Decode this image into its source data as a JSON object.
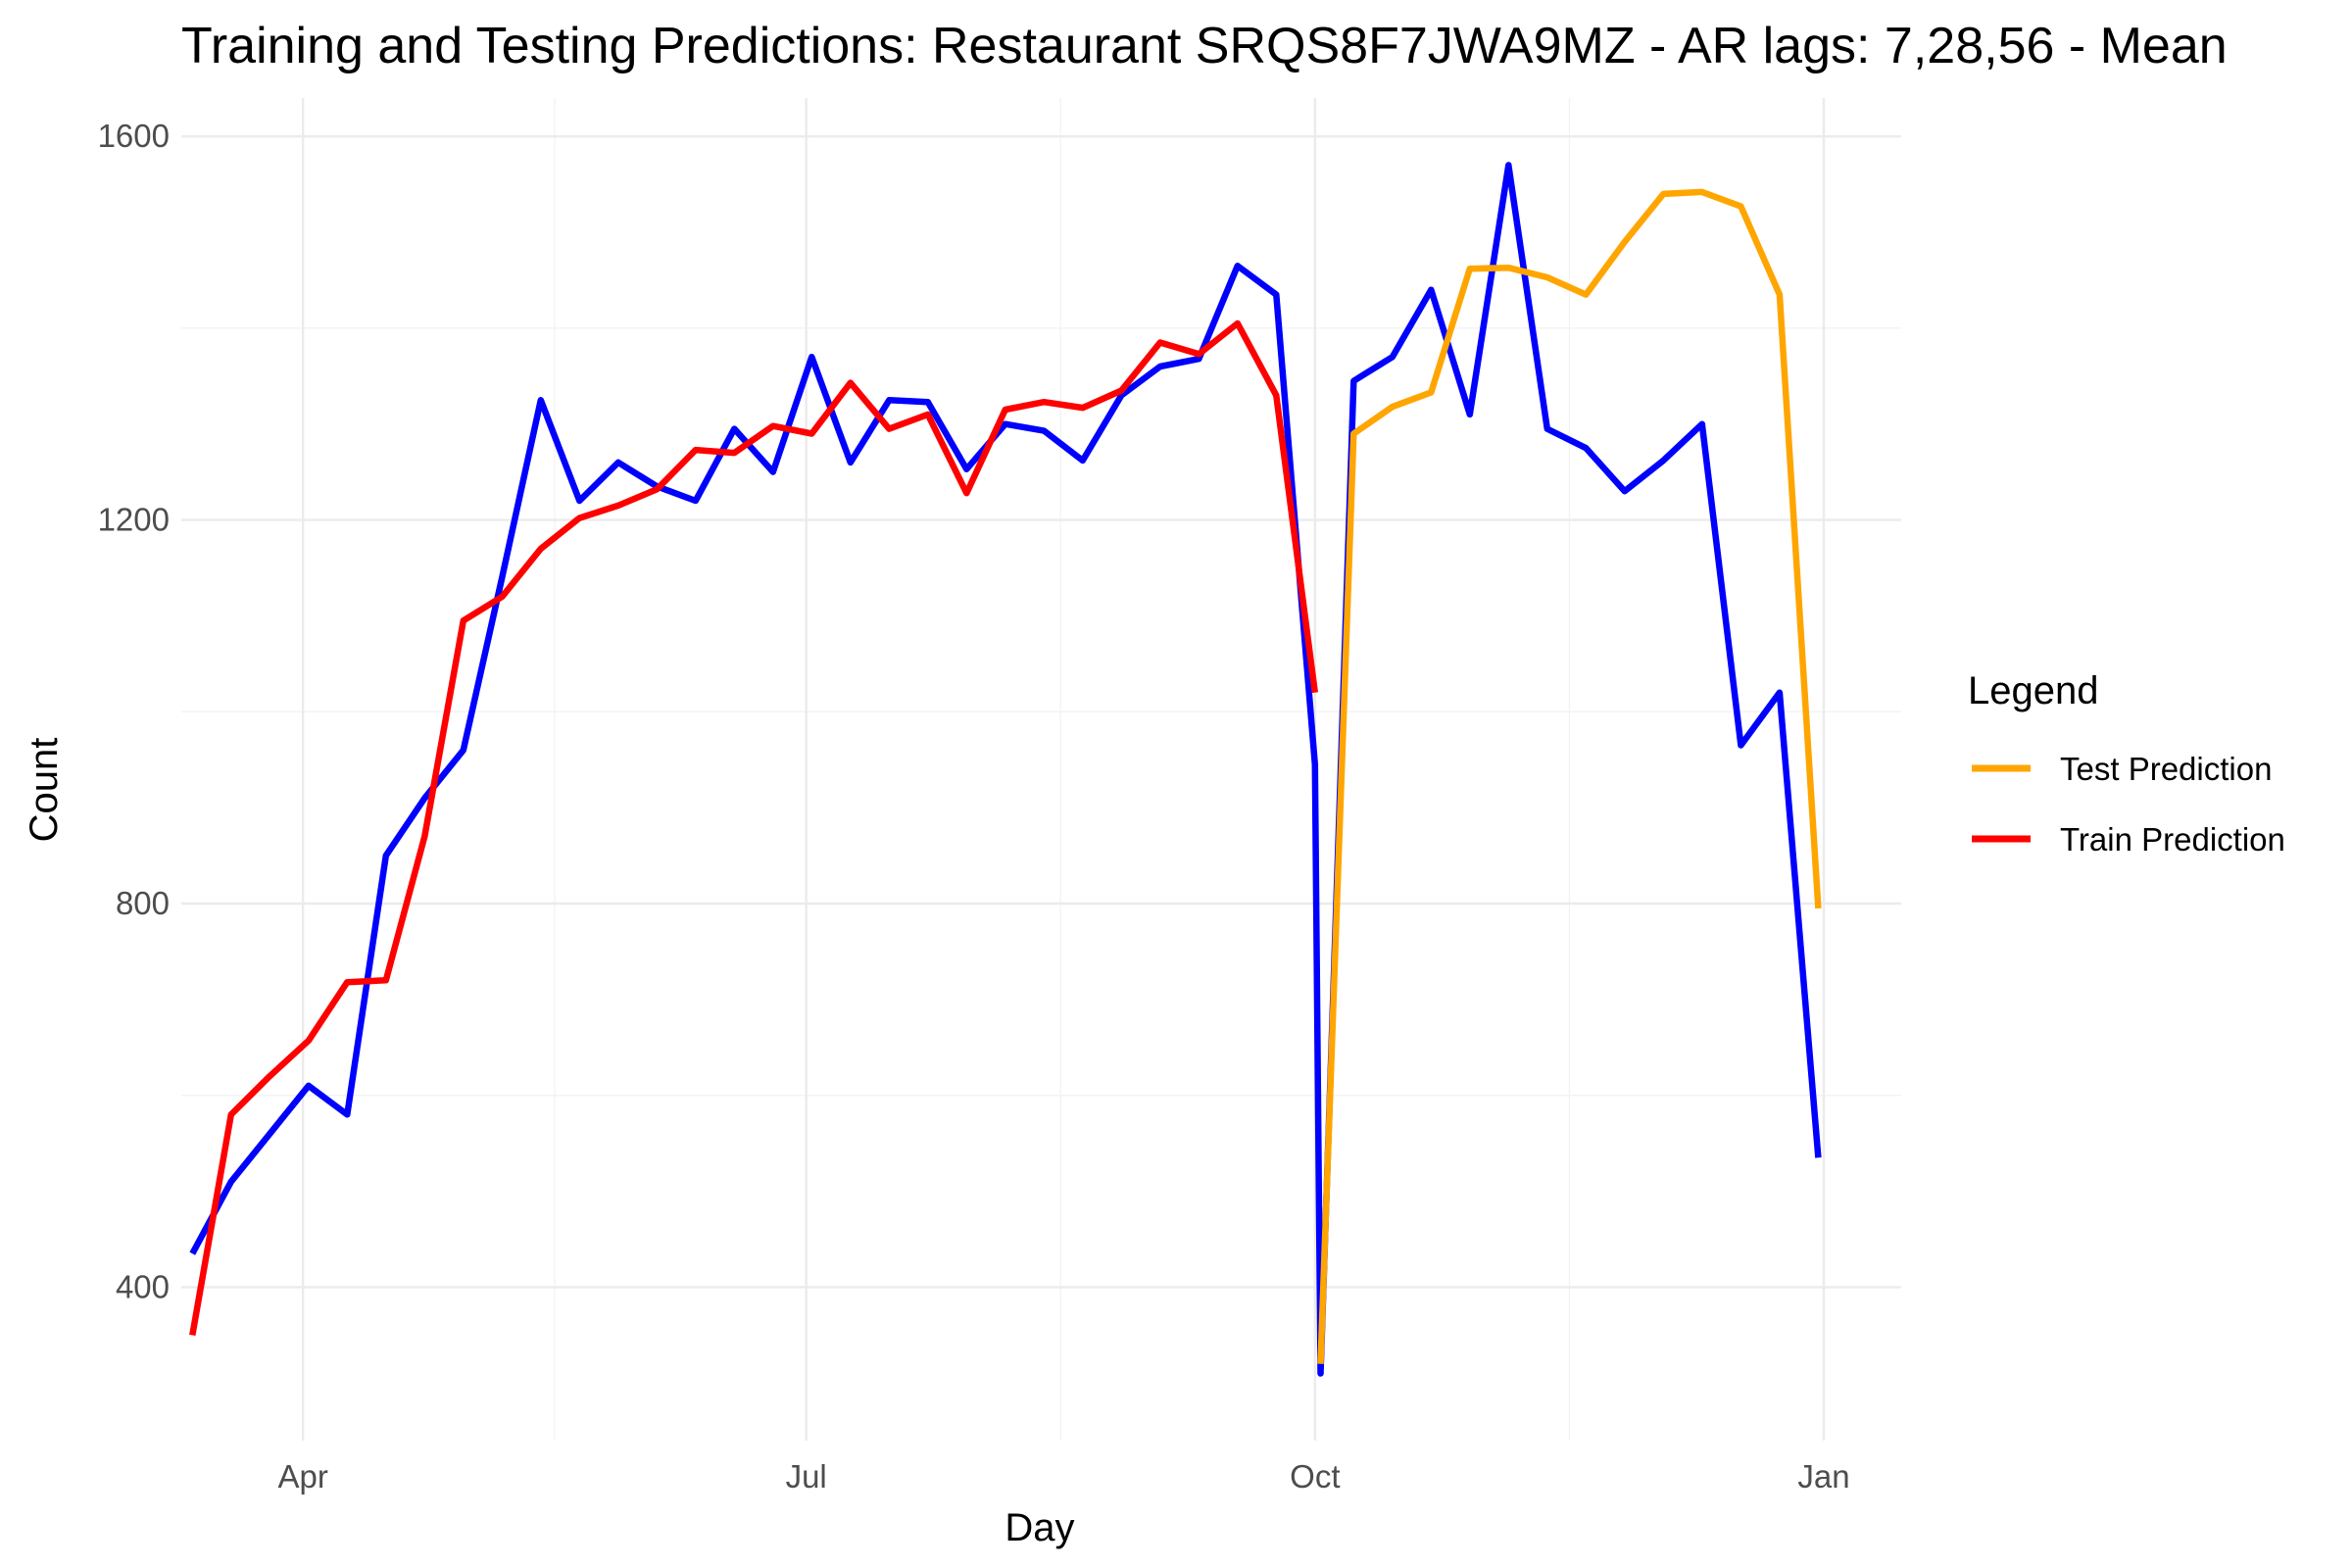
{
  "chart_data": {
    "type": "line",
    "title": "Training and Testing Predictions: Restaurant SRQS8F7JWA9MZ - AR lags: 7,28,56 - Mean",
    "xlabel": "Day",
    "ylabel": "Count",
    "x_range": [
      "2023-03-10",
      "2024-01-15"
    ],
    "ylim": [
      240,
      1640
    ],
    "x_ticks": [
      {
        "date": "2023-04-01",
        "label": "Apr"
      },
      {
        "date": "2023-07-01",
        "label": "Jul"
      },
      {
        "date": "2023-10-01",
        "label": "Oct"
      },
      {
        "date": "2024-01-01",
        "label": "Jan"
      }
    ],
    "y_ticks": [
      400,
      800,
      1200,
      1600
    ],
    "grid": true,
    "legend": {
      "title": "Legend",
      "position": "right",
      "entries": [
        {
          "label": "Test Prediction",
          "color": "#FFA500"
        },
        {
          "label": "Train Prediction",
          "color": "#FF0000"
        }
      ]
    },
    "series": [
      {
        "color": "#0000FF",
        "points": [
          [
            "2023-03-12",
            435
          ],
          [
            "2023-03-19",
            510
          ],
          [
            "2023-03-26",
            560
          ],
          [
            "2023-04-02",
            610
          ],
          [
            "2023-04-09",
            580
          ],
          [
            "2023-04-16",
            850
          ],
          [
            "2023-04-23",
            910
          ],
          [
            "2023-04-30",
            960
          ],
          [
            "2023-05-07",
            1140
          ],
          [
            "2023-05-14",
            1325
          ],
          [
            "2023-05-21",
            1220
          ],
          [
            "2023-05-28",
            1260
          ],
          [
            "2023-06-04",
            1235
          ],
          [
            "2023-06-11",
            1220
          ],
          [
            "2023-06-18",
            1295
          ],
          [
            "2023-06-25",
            1250
          ],
          [
            "2023-07-02",
            1370
          ],
          [
            "2023-07-09",
            1260
          ],
          [
            "2023-07-16",
            1325
          ],
          [
            "2023-07-23",
            1323
          ],
          [
            "2023-07-30",
            1253
          ],
          [
            "2023-08-06",
            1300
          ],
          [
            "2023-08-13",
            1293
          ],
          [
            "2023-08-20",
            1262
          ],
          [
            "2023-08-27",
            1330
          ],
          [
            "2023-09-03",
            1360
          ],
          [
            "2023-09-10",
            1368
          ],
          [
            "2023-09-17",
            1465
          ],
          [
            "2023-09-24",
            1435
          ],
          [
            "2023-10-01",
            945
          ],
          [
            "2023-10-02",
            310
          ],
          [
            "2023-10-08",
            1345
          ],
          [
            "2023-10-15",
            1370
          ],
          [
            "2023-10-22",
            1440
          ],
          [
            "2023-10-29",
            1310
          ],
          [
            "2023-11-05",
            1570
          ],
          [
            "2023-11-12",
            1295
          ],
          [
            "2023-11-19",
            1275
          ],
          [
            "2023-11-26",
            1230
          ],
          [
            "2023-12-03",
            1262
          ],
          [
            "2023-12-10",
            1300
          ],
          [
            "2023-12-17",
            965
          ],
          [
            "2023-12-24",
            1020
          ],
          [
            "2023-12-31",
            535
          ]
        ]
      },
      {
        "name": "Train Prediction",
        "color": "#FF0000",
        "points": [
          [
            "2023-03-12",
            350
          ],
          [
            "2023-03-19",
            580
          ],
          [
            "2023-03-26",
            620
          ],
          [
            "2023-04-02",
            657
          ],
          [
            "2023-04-09",
            718
          ],
          [
            "2023-04-16",
            720
          ],
          [
            "2023-04-23",
            870
          ],
          [
            "2023-04-30",
            1095
          ],
          [
            "2023-05-07",
            1120
          ],
          [
            "2023-05-14",
            1170
          ],
          [
            "2023-05-21",
            1202
          ],
          [
            "2023-05-28",
            1215
          ],
          [
            "2023-06-04",
            1232
          ],
          [
            "2023-06-11",
            1273
          ],
          [
            "2023-06-18",
            1270
          ],
          [
            "2023-06-25",
            1298
          ],
          [
            "2023-07-02",
            1290
          ],
          [
            "2023-07-09",
            1343
          ],
          [
            "2023-07-16",
            1295
          ],
          [
            "2023-07-23",
            1310
          ],
          [
            "2023-07-30",
            1228
          ],
          [
            "2023-08-06",
            1315
          ],
          [
            "2023-08-13",
            1323
          ],
          [
            "2023-08-20",
            1317
          ],
          [
            "2023-08-27",
            1335
          ],
          [
            "2023-09-03",
            1385
          ],
          [
            "2023-09-10",
            1373
          ],
          [
            "2023-09-17",
            1405
          ],
          [
            "2023-09-24",
            1330
          ],
          [
            "2023-10-01",
            1020
          ]
        ]
      },
      {
        "name": "Test Prediction",
        "color": "#FFA500",
        "points": [
          [
            "2023-10-02",
            320
          ],
          [
            "2023-10-08",
            1290
          ],
          [
            "2023-10-15",
            1318
          ],
          [
            "2023-10-22",
            1333
          ],
          [
            "2023-10-29",
            1462
          ],
          [
            "2023-11-05",
            1463
          ],
          [
            "2023-11-12",
            1453
          ],
          [
            "2023-11-19",
            1435
          ],
          [
            "2023-11-26",
            1490
          ],
          [
            "2023-12-03",
            1540
          ],
          [
            "2023-12-10",
            1542
          ],
          [
            "2023-12-17",
            1527
          ],
          [
            "2023-12-24",
            1435
          ],
          [
            "2023-12-31",
            795
          ]
        ]
      }
    ]
  }
}
